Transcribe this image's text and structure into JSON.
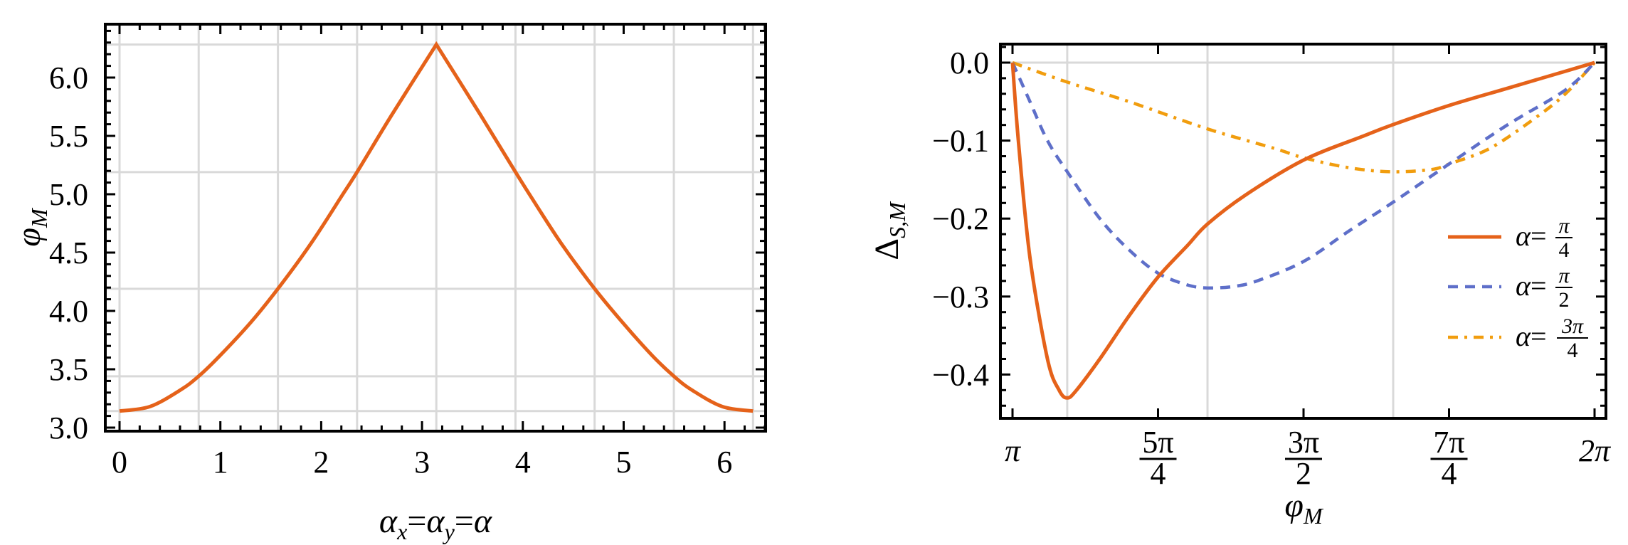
{
  "chart_data": [
    {
      "type": "line",
      "title": "",
      "xlabel": "α_x=α_y=α",
      "ylabel": "φ_M",
      "xlim": [
        -0.14,
        6.42
      ],
      "ylim": [
        2.98,
        6.47
      ],
      "xticks": [
        0,
        1,
        2,
        3,
        4,
        5,
        6
      ],
      "xtick_labels": [
        "0",
        "1",
        "2",
        "3",
        "4",
        "5",
        "6"
      ],
      "yticks": [
        3.0,
        3.5,
        4.0,
        4.5,
        5.0,
        5.5,
        6.0
      ],
      "ytick_labels": [
        "3.0",
        "3.5",
        "4.0",
        "4.5",
        "5.0",
        "5.5",
        "6.0"
      ],
      "grid": true,
      "grid_x": [
        0,
        0.785,
        1.571,
        2.356,
        3.142,
        3.927,
        4.712,
        5.498,
        6.283
      ],
      "grid_y": [
        3.142,
        3.44,
        4.19,
        5.19,
        6.283
      ],
      "series": [
        {
          "name": "φ_M",
          "color": "#E5621A",
          "style": "solid",
          "x": [
            0,
            0.3,
            0.6,
            0.785,
            1.0,
            1.3,
            1.571,
            1.9,
            2.2,
            2.356,
            2.7,
            3.142,
            3.58,
            3.927,
            4.08,
            4.38,
            4.712,
            4.99,
            5.28,
            5.498,
            5.68,
            5.98,
            6.283
          ],
          "y": [
            3.142,
            3.18,
            3.32,
            3.44,
            3.62,
            3.9,
            4.19,
            4.58,
            4.98,
            5.19,
            5.68,
            6.283,
            5.68,
            5.19,
            4.98,
            4.58,
            4.19,
            3.9,
            3.62,
            3.44,
            3.32,
            3.18,
            3.142
          ]
        }
      ]
    },
    {
      "type": "line",
      "title": "",
      "xlabel": "φ_M",
      "ylabel": "Δ_{S,M}",
      "xlim_over_pi": [
        0.979,
        2.04
      ],
      "ylim": [
        -0.455,
        0.024
      ],
      "xticks_over_pi": [
        1.0,
        1.25,
        1.5,
        1.75,
        2.0
      ],
      "xtick_labels": [
        {
          "num": "π",
          "den": ""
        },
        {
          "num": "5π",
          "den": "4"
        },
        {
          "num": "3π",
          "den": "2"
        },
        {
          "num": "7π",
          "den": "4"
        },
        {
          "num": "2π",
          "den": ""
        }
      ],
      "yticks": [
        0.0,
        -0.1,
        -0.2,
        -0.3,
        -0.4
      ],
      "ytick_labels": [
        "0.0",
        "−0.1",
        "−0.2",
        "−0.3",
        "−0.4"
      ],
      "grid": true,
      "grid_x_over_pi": [
        1.094,
        1.335,
        1.654
      ],
      "grid_y": [
        0.0
      ],
      "legend_position": "right-center",
      "series": [
        {
          "name": "α=π/4",
          "legend": {
            "prefix": "α=",
            "num": "π",
            "den": "4"
          },
          "color": "#E5621A",
          "style": "solid",
          "x_over_pi": [
            1.0,
            1.01,
            1.03,
            1.06,
            1.08,
            1.094,
            1.11,
            1.15,
            1.2,
            1.25,
            1.3,
            1.335,
            1.4,
            1.5,
            1.6,
            1.652,
            1.75,
            1.85,
            1.95,
            2.0
          ],
          "y": [
            0.0,
            -0.1,
            -0.25,
            -0.38,
            -0.42,
            -0.43,
            -0.42,
            -0.38,
            -0.325,
            -0.275,
            -0.235,
            -0.207,
            -0.17,
            -0.125,
            -0.095,
            -0.08,
            -0.055,
            -0.033,
            -0.011,
            0.0
          ]
        },
        {
          "name": "α=π/2",
          "legend": {
            "prefix": "α=",
            "num": "π",
            "den": "2"
          },
          "color": "#5E6FC9",
          "style": "dashed",
          "x_over_pi": [
            1.0,
            1.03,
            1.06,
            1.094,
            1.15,
            1.2,
            1.25,
            1.3,
            1.335,
            1.38,
            1.42,
            1.5,
            1.58,
            1.652,
            1.75,
            1.85,
            1.95,
            2.0
          ],
          "y": [
            0.0,
            -0.05,
            -0.1,
            -0.14,
            -0.2,
            -0.24,
            -0.27,
            -0.285,
            -0.289,
            -0.287,
            -0.28,
            -0.255,
            -0.215,
            -0.18,
            -0.13,
            -0.08,
            -0.035,
            0.0
          ]
        },
        {
          "name": "α=3π/4",
          "legend": {
            "prefix": "α=",
            "num": "3π",
            "den": "4"
          },
          "color": "#F19D0E",
          "style": "dashdot",
          "x_over_pi": [
            1.0,
            1.094,
            1.2,
            1.335,
            1.45,
            1.5,
            1.58,
            1.652,
            1.72,
            1.75,
            1.82,
            1.9,
            1.95,
            2.0
          ],
          "y": [
            0.0,
            -0.025,
            -0.05,
            -0.085,
            -0.11,
            -0.122,
            -0.135,
            -0.14,
            -0.137,
            -0.13,
            -0.11,
            -0.07,
            -0.04,
            0.0
          ]
        }
      ]
    }
  ]
}
